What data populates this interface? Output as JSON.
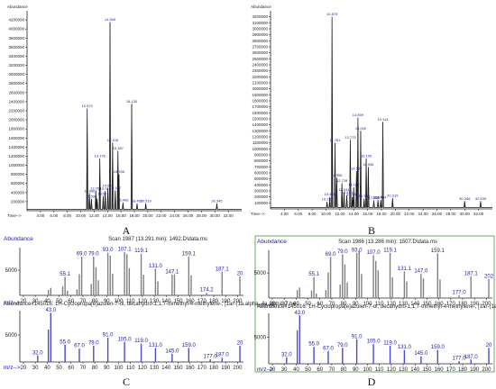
{
  "letters": {
    "A": "A",
    "B": "B",
    "C": "C",
    "D": "D"
  },
  "chart_data": [
    {
      "type": "line",
      "panel": "A",
      "ylabel": "Abundance",
      "xlabel": "Time-->",
      "xlim": [
        2.0,
        34.0
      ],
      "ylim": [
        0,
        4400000
      ],
      "x_ticks": [
        "4.00",
        "6.00",
        "8.00",
        "10.00",
        "12.00",
        "14.00",
        "16.00",
        "18.00",
        "20.00",
        "22.00",
        "24.00",
        "26.00",
        "28.00",
        "30.00",
        "32.00"
      ],
      "y_ticks": [
        "200000",
        "400000",
        "600000",
        "800000",
        "1000000",
        "1200000",
        "1400000",
        "1600000",
        "1800000",
        "2000000",
        "2200000",
        "2400000",
        "2600000",
        "2800000",
        "3000000",
        "3200000",
        "3400000",
        "3600000",
        "3800000",
        "4000000",
        "4200000"
      ],
      "peaks": [
        {
          "x": 10.97,
          "y": 2250000,
          "label": "10.970"
        },
        {
          "x": 11.3,
          "y": 380000,
          "label": "10.896"
        },
        {
          "x": 11.6,
          "y": 260000,
          "label": "11.594"
        },
        {
          "x": 12.25,
          "y": 440000,
          "label": "12.765"
        },
        {
          "x": 12.45,
          "y": 270000,
          "label": ""
        },
        {
          "x": 12.85,
          "y": 1150000,
          "label": "13.176"
        },
        {
          "x": 13.35,
          "y": 320000,
          "label": "13.527"
        },
        {
          "x": 13.65,
          "y": 430000,
          "label": "13.741"
        },
        {
          "x": 14.05,
          "y": 500000,
          "label": "14.031"
        },
        {
          "x": 14.37,
          "y": 4150000,
          "label": "14.369"
        },
        {
          "x": 14.75,
          "y": 1500000,
          "label": "15.108"
        },
        {
          "x": 15.15,
          "y": 450000,
          "label": "15.192"
        },
        {
          "x": 15.55,
          "y": 1320000,
          "label": "15.387"
        },
        {
          "x": 15.7,
          "y": 800000,
          "label": "15.766"
        },
        {
          "x": 16.3,
          "y": 180000,
          "label": "16.408"
        },
        {
          "x": 17.6,
          "y": 2350000,
          "label": "18.130"
        },
        {
          "x": 18.4,
          "y": 160000,
          "label": "18.465"
        },
        {
          "x": 19.7,
          "y": 160000,
          "label": "20.519"
        },
        {
          "x": 30.3,
          "y": 160000,
          "label": "30.345"
        }
      ]
    },
    {
      "type": "line",
      "panel": "B",
      "ylabel": "Abundance",
      "xlabel": "Time-->",
      "xlim": [
        2.0,
        34.0
      ],
      "ylim": [
        0,
        3300000
      ],
      "x_ticks": [
        "4.00",
        "6.00",
        "8.00",
        "10.00",
        "12.00",
        "14.00",
        "16.00",
        "18.00",
        "20.00",
        "22.00",
        "24.00",
        "26.00",
        "28.00",
        "30.00",
        "32.00"
      ],
      "y_ticks": [
        "100000",
        "200000",
        "300000",
        "400000",
        "500000",
        "600000",
        "700000",
        "800000",
        "900000",
        "1000000",
        "1100000",
        "1200000",
        "1300000",
        "1400000",
        "1500000",
        "1600000",
        "1700000",
        "1800000",
        "1900000",
        "2000000",
        "2100000",
        "2200000",
        "2300000",
        "2400000",
        "2500000",
        "2600000",
        "2700000",
        "2800000",
        "2900000",
        "3000000",
        "3100000",
        "3200000"
      ],
      "peaks": [
        {
          "x": 10.15,
          "y": 120000,
          "label": "10.130"
        },
        {
          "x": 10.55,
          "y": 200000,
          "label": "10.435"
        },
        {
          "x": 10.87,
          "y": 3200000,
          "label": "10.875"
        },
        {
          "x": 11.3,
          "y": 1100000,
          "label": "11.761"
        },
        {
          "x": 11.55,
          "y": 520000,
          "label": "11.955"
        },
        {
          "x": 12.3,
          "y": 430000,
          "label": "12.728"
        },
        {
          "x": 12.6,
          "y": 280000,
          "label": "12.941"
        },
        {
          "x": 13.0,
          "y": 230000,
          "label": "13.240"
        },
        {
          "x": 13.5,
          "y": 1150000,
          "label": "13.773"
        },
        {
          "x": 13.8,
          "y": 200000,
          "label": "14.045"
        },
        {
          "x": 14.0,
          "y": 360000,
          "label": "14.180"
        },
        {
          "x": 14.4,
          "y": 630000,
          "label": "14.597"
        },
        {
          "x": 14.6,
          "y": 1520000,
          "label": "14.559"
        },
        {
          "x": 15.0,
          "y": 1300000,
          "label": "15.000"
        },
        {
          "x": 15.5,
          "y": 170000,
          "label": "15.302"
        },
        {
          "x": 15.8,
          "y": 840000,
          "label": "16.105"
        },
        {
          "x": 16.1,
          "y": 700000,
          "label": "16.946"
        },
        {
          "x": 16.9,
          "y": 140000,
          "label": "17.202"
        },
        {
          "x": 17.5,
          "y": 150000,
          "label": "18.176"
        },
        {
          "x": 17.9,
          "y": 150000,
          "label": "18.484"
        },
        {
          "x": 18.2,
          "y": 1450000,
          "label": "19.114"
        },
        {
          "x": 19.6,
          "y": 180000,
          "label": "20.319"
        },
        {
          "x": 30.0,
          "y": 130000,
          "label": "30.348"
        },
        {
          "x": 32.3,
          "y": 130000,
          "label": "32.635"
        }
      ]
    },
    {
      "type": "bar",
      "panel": "C",
      "header": {
        "abundance_label": "Abundance",
        "scan_title": "Scan 1987 (13.291 min): 1492.D\\data.ms",
        "axis_label": "m/z-->",
        "library_title": "Abundance#145016: 1H-Cyclopropa[e]azulen-7-ol, decahydro-1,1,7-trimethyl-4-methylene-, [1ar-(1a.alpha.,4a.alpha.,7.be"
      },
      "xlim": [
        17,
        205
      ],
      "x_ticks": [
        "20",
        "30",
        "40",
        "50",
        "60",
        "70",
        "80",
        "90",
        "100",
        "110",
        "120",
        "130",
        "140",
        "150",
        "160",
        "170",
        "180",
        "190",
        "200"
      ],
      "top": {
        "ylim": [
          0,
          9500
        ],
        "y_ticks": [
          "5000"
        ],
        "peaks": [
          {
            "x": 41,
            "y": 1100
          },
          {
            "x": 43,
            "y": 1500
          },
          {
            "x": 53,
            "y": 1800
          },
          {
            "x": 55,
            "y": 3700,
            "label": "55.1"
          },
          {
            "x": 57,
            "y": 900
          },
          {
            "x": 65,
            "y": 1200
          },
          {
            "x": 67,
            "y": 4200
          },
          {
            "x": 69,
            "y": 7700,
            "label": "69.0"
          },
          {
            "x": 77,
            "y": 2300
          },
          {
            "x": 79,
            "y": 7700,
            "label": "79.0"
          },
          {
            "x": 81,
            "y": 5600
          },
          {
            "x": 83,
            "y": 3000
          },
          {
            "x": 91,
            "y": 8500,
            "label": "93.0"
          },
          {
            "x": 93,
            "y": 7900
          },
          {
            "x": 95,
            "y": 4300
          },
          {
            "x": 105,
            "y": 8600,
            "label": "107.1"
          },
          {
            "x": 107,
            "y": 8200
          },
          {
            "x": 109,
            "y": 5400
          },
          {
            "x": 119,
            "y": 8300,
            "label": "119.1"
          },
          {
            "x": 121,
            "y": 4100
          },
          {
            "x": 131,
            "y": 5300,
            "label": "131.0"
          },
          {
            "x": 133,
            "y": 2800
          },
          {
            "x": 145,
            "y": 4100,
            "label": "147.1"
          },
          {
            "x": 147,
            "y": 4200
          },
          {
            "x": 159,
            "y": 7700,
            "label": "159.1"
          },
          {
            "x": 161,
            "y": 4000
          },
          {
            "x": 174,
            "y": 500,
            "label": "174.2"
          },
          {
            "x": 187,
            "y": 4700,
            "label": "187.1"
          },
          {
            "x": 202,
            "y": 3800,
            "label": "20"
          }
        ]
      },
      "bottom": {
        "ylim": [
          0,
          9500
        ],
        "y_ticks": [
          "5000"
        ],
        "peaks": [
          {
            "x": 32,
            "y": 1200,
            "label": "32.0"
          },
          {
            "x": 41,
            "y": 6000
          },
          {
            "x": 43,
            "y": 9100,
            "label": "43.0"
          },
          {
            "x": 55,
            "y": 3200,
            "label": "55.0"
          },
          {
            "x": 67,
            "y": 2500,
            "label": "67.0"
          },
          {
            "x": 79,
            "y": 3000,
            "label": "79.0"
          },
          {
            "x": 91,
            "y": 4500,
            "label": "91.0"
          },
          {
            "x": 105,
            "y": 3700,
            "label": "105.0"
          },
          {
            "x": 119,
            "y": 3400,
            "label": "119.0"
          },
          {
            "x": 131,
            "y": 2600,
            "label": "131.0"
          },
          {
            "x": 145,
            "y": 1500,
            "label": "145.0"
          },
          {
            "x": 159,
            "y": 2600,
            "label": "159.0"
          },
          {
            "x": 177,
            "y": 500,
            "label": "177.0"
          },
          {
            "x": 187,
            "y": 800,
            "label": "187.0"
          },
          {
            "x": 202,
            "y": 3000,
            "label": "20"
          }
        ]
      }
    },
    {
      "type": "bar",
      "panel": "D",
      "header": {
        "abundance_label": "Abundance",
        "scan_title": "Scan 1986 (13.286 min): 1507.D\\data.ms",
        "axis_label": "m/z-->",
        "library_title": "Abundance#145016: 1H-Cyclopropa[e]azulen-7-ol, decahydro-1,1,7-trimethyl-4-methylene-, [1ar-(1a.alpha.,4a.alpha.,7.be"
      },
      "xlim": [
        17,
        205
      ],
      "x_ticks": [
        "20",
        "30",
        "40",
        "50",
        "60",
        "70",
        "80",
        "90",
        "100",
        "110",
        "120",
        "130",
        "140",
        "150",
        "160",
        "170",
        "180",
        "190",
        "200"
      ],
      "top": {
        "ylim": [
          0,
          9500
        ],
        "y_ticks": [
          "5000"
        ],
        "peaks": [
          {
            "x": 41,
            "y": 1600
          },
          {
            "x": 43,
            "y": 2100
          },
          {
            "x": 53,
            "y": 1500
          },
          {
            "x": 55,
            "y": 4200,
            "label": "55.1"
          },
          {
            "x": 57,
            "y": 900
          },
          {
            "x": 65,
            "y": 1600
          },
          {
            "x": 67,
            "y": 5100
          },
          {
            "x": 69,
            "y": 8200,
            "label": "69.0"
          },
          {
            "x": 77,
            "y": 2700
          },
          {
            "x": 79,
            "y": 8700,
            "label": "79.0"
          },
          {
            "x": 81,
            "y": 6700
          },
          {
            "x": 83,
            "y": 3100
          },
          {
            "x": 91,
            "y": 9000,
            "label": "93.0"
          },
          {
            "x": 93,
            "y": 9400
          },
          {
            "x": 95,
            "y": 4800
          },
          {
            "x": 105,
            "y": 8500,
            "label": "107.0"
          },
          {
            "x": 107,
            "y": 7400
          },
          {
            "x": 109,
            "y": 5500
          },
          {
            "x": 119,
            "y": 9000,
            "label": "119.1"
          },
          {
            "x": 121,
            "y": 4100
          },
          {
            "x": 131,
            "y": 5300,
            "label": "131.1"
          },
          {
            "x": 133,
            "y": 3300
          },
          {
            "x": 145,
            "y": 4800,
            "label": "147.0"
          },
          {
            "x": 147,
            "y": 3900
          },
          {
            "x": 159,
            "y": 8900,
            "label": "159.1"
          },
          {
            "x": 161,
            "y": 3700
          },
          {
            "x": 177,
            "y": 500,
            "label": "177.0"
          },
          {
            "x": 187,
            "y": 4300,
            "label": "187.1"
          },
          {
            "x": 202,
            "y": 3800,
            "label": "202"
          }
        ]
      },
      "bottom": {
        "ylim": [
          0,
          9500
        ],
        "y_ticks": [
          "5000"
        ],
        "peaks": [
          {
            "x": 32,
            "y": 1200,
            "label": "32.0"
          },
          {
            "x": 41,
            "y": 6300
          },
          {
            "x": 43,
            "y": 9100,
            "label": "43.0"
          },
          {
            "x": 55,
            "y": 3200,
            "label": "55.0"
          },
          {
            "x": 67,
            "y": 2400,
            "label": "67.0"
          },
          {
            "x": 79,
            "y": 3000,
            "label": "79.0"
          },
          {
            "x": 91,
            "y": 4600,
            "label": "91.0"
          },
          {
            "x": 105,
            "y": 3700,
            "label": "105.0"
          },
          {
            "x": 119,
            "y": 3400,
            "label": "119.0"
          },
          {
            "x": 131,
            "y": 2600,
            "label": "131.0"
          },
          {
            "x": 145,
            "y": 1400,
            "label": "145.0"
          },
          {
            "x": 159,
            "y": 2600,
            "label": "159.0"
          },
          {
            "x": 177,
            "y": 500,
            "label": "177.0"
          },
          {
            "x": 187,
            "y": 800,
            "label": "187.0"
          },
          {
            "x": 202,
            "y": 3000,
            "label": "20"
          }
        ]
      }
    }
  ],
  "colors": {
    "chromatogram_line": "#1a1a1a",
    "ms_bar": "#808080",
    "library_bar": "#4a4ad8",
    "ms_text": "#1a1ab0",
    "panel_border_d": "#3a9a3a"
  }
}
